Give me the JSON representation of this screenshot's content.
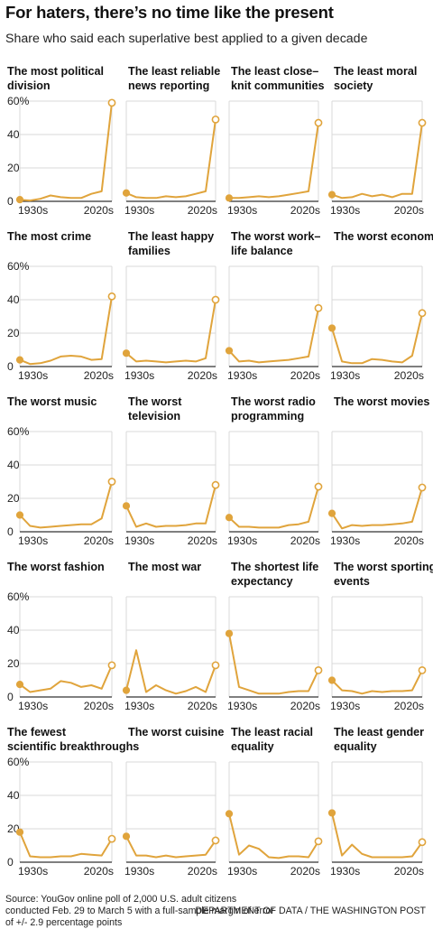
{
  "header": {
    "title": "For haters, there’s no time like the present",
    "subtitle": "Share who said each superlative best applied to a given decade"
  },
  "footer": {
    "source": "Source: YouGov online poll of 2,000 U.S. adult citizens conducted Feb. 29 to March 5 with a full-sample margin of error of +/- 2.9 percentage points",
    "credit": "DEPARTMENT OF DATA / THE WASHINGTON POST"
  },
  "colors": {
    "line": "#e0a43c",
    "grid": "#d9d9d9",
    "axis": "#333333"
  },
  "chart_data": {
    "type": "line",
    "x": [
      "1930s",
      "1940s",
      "1950s",
      "1960s",
      "1970s",
      "1980s",
      "1990s",
      "2000s",
      "2010s",
      "2020s"
    ],
    "x_tick_labels": [
      "1930s",
      "2020s"
    ],
    "ylim": [
      0,
      60
    ],
    "y_ticks": [
      0,
      20,
      40,
      60
    ],
    "y_tick_labels": [
      "0",
      "20",
      "40",
      "60%"
    ],
    "grid": true,
    "panels": [
      {
        "title": "The most political division",
        "values": [
          1,
          0.5,
          1.5,
          3.5,
          2.5,
          2,
          2,
          4.5,
          6,
          59
        ]
      },
      {
        "title": "The least reliable news reporting",
        "values": [
          5,
          2.5,
          2,
          2,
          3,
          2.5,
          3,
          4.5,
          6,
          49
        ]
      },
      {
        "title": "The least close-knit communities",
        "values": [
          2,
          2,
          2.5,
          3,
          2.5,
          3,
          4,
          5,
          6,
          47
        ]
      },
      {
        "title": "The least moral society",
        "values": [
          4,
          2,
          2.5,
          4.5,
          3,
          4,
          2.5,
          4.5,
          4.5,
          47
        ]
      },
      {
        "title": "The most crime",
        "values": [
          4,
          1.5,
          2,
          3.5,
          6,
          6.5,
          6,
          4,
          4.5,
          42
        ]
      },
      {
        "title": "The least happy families",
        "values": [
          8,
          3,
          3.5,
          3,
          2.5,
          3,
          3.5,
          3,
          5,
          40
        ]
      },
      {
        "title": "The worst work-life balance",
        "values": [
          9.5,
          3,
          3.5,
          2.5,
          3,
          3.5,
          4,
          5,
          6,
          35
        ]
      },
      {
        "title": "The worst economy",
        "values": [
          23,
          3,
          2,
          2,
          4.5,
          4,
          3,
          2.5,
          6.5,
          32
        ]
      },
      {
        "title": "The worst music",
        "values": [
          10,
          3.5,
          2.5,
          3,
          3.5,
          4,
          4.5,
          4.5,
          8,
          30
        ]
      },
      {
        "title": "The worst television",
        "values": [
          15.5,
          3,
          5,
          3,
          3.5,
          3.5,
          4,
          5,
          5,
          28
        ]
      },
      {
        "title": "The worst radio programming",
        "values": [
          8.5,
          3,
          3,
          2.5,
          2.5,
          2.5,
          4,
          4.5,
          6,
          27
        ]
      },
      {
        "title": "The worst movies",
        "values": [
          11,
          2,
          4,
          3.5,
          4,
          4,
          4.5,
          5,
          6,
          26.5
        ]
      },
      {
        "title": "The worst fashion",
        "values": [
          7.5,
          3,
          4,
          5,
          9.5,
          8.5,
          6,
          7,
          5,
          19
        ]
      },
      {
        "title": "The most war",
        "values": [
          4,
          28,
          3,
          7,
          4,
          2,
          3.5,
          6,
          3,
          19
        ]
      },
      {
        "title": "The shortest life expectancy",
        "values": [
          38,
          6,
          4,
          2,
          2,
          2,
          3,
          3.5,
          3.5,
          16
        ]
      },
      {
        "title": "The worst sporting events",
        "values": [
          10,
          4,
          3.5,
          2,
          3.5,
          3,
          3.5,
          3.5,
          4,
          16
        ]
      },
      {
        "title": "The fewest scientific breakthroughs",
        "values": [
          18,
          3.5,
          3,
          3,
          3.5,
          3.5,
          5,
          4.5,
          4,
          14
        ]
      },
      {
        "title": "The worst cuisine",
        "values": [
          15.5,
          4,
          4,
          3,
          4,
          3,
          3.5,
          4,
          4.5,
          13
        ]
      },
      {
        "title": "The least racial equality",
        "values": [
          29,
          4.5,
          10,
          8,
          3,
          2.5,
          3.5,
          3.5,
          3,
          12.5
        ]
      },
      {
        "title": "The least gender equality",
        "values": [
          29.5,
          4,
          10.5,
          5,
          3,
          3,
          3,
          3,
          3.5,
          12
        ]
      }
    ]
  }
}
